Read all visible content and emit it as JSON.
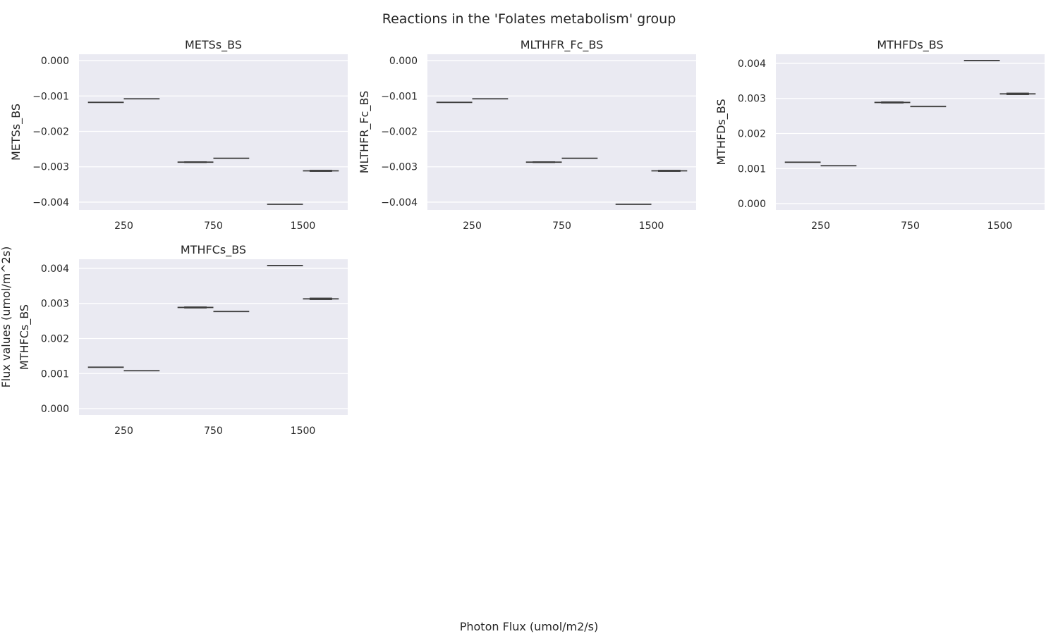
{
  "figure": {
    "title": "Reactions in the 'Folates metabolism' group",
    "xlabel": "Photon Flux (umol/m2/s)",
    "ylabel": "Flux values (umol/m^2s)"
  },
  "colors": {
    "panel_bg": "#eaeaf2",
    "grid": "#ffffff",
    "line": "#3f3f3f",
    "text": "#262626"
  },
  "chart_data": [
    {
      "type": "box",
      "title": "METSs_BS",
      "ylabel": "METSs_BS",
      "xlabel": "",
      "categories": [
        "250",
        "750",
        "1500"
      ],
      "ylim": [
        -0.00422,
        0.00018
      ],
      "yticks": [
        0.0,
        -0.001,
        -0.002,
        -0.003,
        -0.004
      ],
      "ytick_labels": [
        "0.000",
        "−0.001",
        "−0.002",
        "−0.003",
        "−0.004"
      ],
      "grid": true,
      "boxes": [
        {
          "category": "250",
          "values": [
            -0.00118
          ]
        },
        {
          "category": "250",
          "values": [
            -0.00108
          ]
        },
        {
          "category": "750",
          "values": [
            -0.00288,
            -0.00286
          ]
        },
        {
          "category": "750",
          "values": [
            -0.00276
          ]
        },
        {
          "category": "1500",
          "values": [
            -0.00406
          ]
        },
        {
          "category": "1500",
          "values": [
            -0.0031,
            -0.00313
          ]
        }
      ]
    },
    {
      "type": "box",
      "title": "MLTHFR_Fc_BS",
      "ylabel": "MLTHFR_Fc_BS",
      "xlabel": "",
      "categories": [
        "250",
        "750",
        "1500"
      ],
      "ylim": [
        -0.00422,
        0.00018
      ],
      "yticks": [
        0.0,
        -0.001,
        -0.002,
        -0.003,
        -0.004
      ],
      "ytick_labels": [
        "0.000",
        "−0.001",
        "−0.002",
        "−0.003",
        "−0.004"
      ],
      "grid": true,
      "boxes": [
        {
          "category": "250",
          "values": [
            -0.00118
          ]
        },
        {
          "category": "250",
          "values": [
            -0.00108
          ]
        },
        {
          "category": "750",
          "values": [
            -0.00288,
            -0.00286
          ]
        },
        {
          "category": "750",
          "values": [
            -0.00276
          ]
        },
        {
          "category": "1500",
          "values": [
            -0.00406
          ]
        },
        {
          "category": "1500",
          "values": [
            -0.0031,
            -0.00313
          ]
        }
      ]
    },
    {
      "type": "box",
      "title": "MTHFDs_BS",
      "ylabel": "MTHFDs_BS",
      "xlabel": "",
      "categories": [
        "250",
        "750",
        "1500"
      ],
      "ylim": [
        -0.00018,
        0.00426
      ],
      "yticks": [
        0.0,
        0.001,
        0.002,
        0.003,
        0.004
      ],
      "ytick_labels": [
        "0.000",
        "0.001",
        "0.002",
        "0.003",
        "0.004"
      ],
      "grid": true,
      "boxes": [
        {
          "category": "250",
          "values": [
            0.00118
          ]
        },
        {
          "category": "250",
          "values": [
            0.00108
          ]
        },
        {
          "category": "750",
          "values": [
            0.0029,
            0.00287
          ]
        },
        {
          "category": "750",
          "values": [
            0.00277
          ]
        },
        {
          "category": "1500",
          "values": [
            0.00408
          ]
        },
        {
          "category": "1500",
          "values": [
            0.00311,
            0.00315
          ]
        }
      ]
    },
    {
      "type": "box",
      "title": "MTHFCs_BS",
      "ylabel": "MTHFCs_BS",
      "xlabel": "",
      "categories": [
        "250",
        "750",
        "1500"
      ],
      "ylim": [
        -0.00018,
        0.00426
      ],
      "yticks": [
        0.0,
        0.001,
        0.002,
        0.003,
        0.004
      ],
      "ytick_labels": [
        "0.000",
        "0.001",
        "0.002",
        "0.003",
        "0.004"
      ],
      "grid": true,
      "boxes": [
        {
          "category": "250",
          "values": [
            0.00118
          ]
        },
        {
          "category": "250",
          "values": [
            0.00108
          ]
        },
        {
          "category": "750",
          "values": [
            0.0029,
            0.00287
          ]
        },
        {
          "category": "750",
          "values": [
            0.00277
          ]
        },
        {
          "category": "1500",
          "values": [
            0.00408
          ]
        },
        {
          "category": "1500",
          "values": [
            0.00311,
            0.00315
          ]
        }
      ]
    }
  ]
}
